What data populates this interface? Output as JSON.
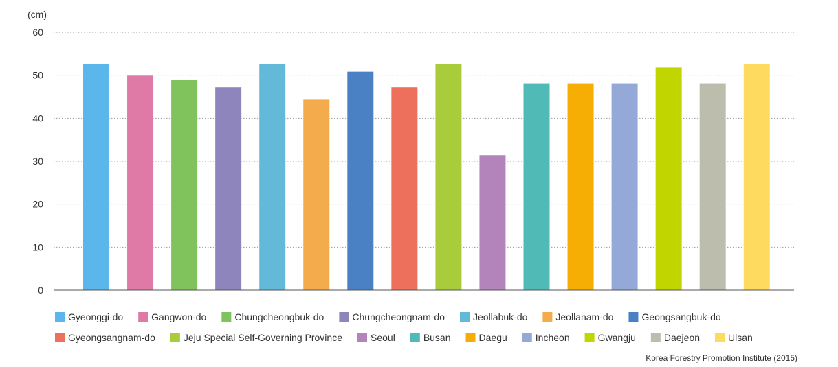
{
  "chart_data": {
    "type": "bar",
    "unit": "(cm)",
    "categories": [
      "Gyeonggi-do",
      "Gangwon-do",
      "Chungcheongbuk-do",
      "Chungcheongnam-do",
      "Jeollabuk-do",
      "Jeollanam-do",
      "Geongsangbuk-do",
      "Gyeongsangnam-do",
      "Jeju Special Self-Governing Province",
      "Seoul",
      "Busan",
      "Daegu",
      "Incheon",
      "Gwangju",
      "Daejeon",
      "Ulsan"
    ],
    "values": [
      52.6,
      49.9,
      48.9,
      47.2,
      52.6,
      44.3,
      50.8,
      47.2,
      52.6,
      31.4,
      48.1,
      48.1,
      48.1,
      51.8,
      48.1,
      52.6
    ],
    "colors": [
      "#5bb6ec",
      "#df79a6",
      "#80c25c",
      "#8d85bc",
      "#63bad8",
      "#f4ab4b",
      "#4a80c4",
      "#ec705c",
      "#a9cd3a",
      "#b384bb",
      "#50bab7",
      "#f6ae05",
      "#94a9d8",
      "#c1d500",
      "#bdbdae",
      "#fedb5f"
    ],
    "ylim": [
      0,
      60
    ],
    "yticks": [
      0,
      10,
      20,
      30,
      40,
      50,
      60
    ],
    "grid": true,
    "legend_placement": "bottom",
    "source": "Korea Forestry Promotion Institute (2015)"
  }
}
